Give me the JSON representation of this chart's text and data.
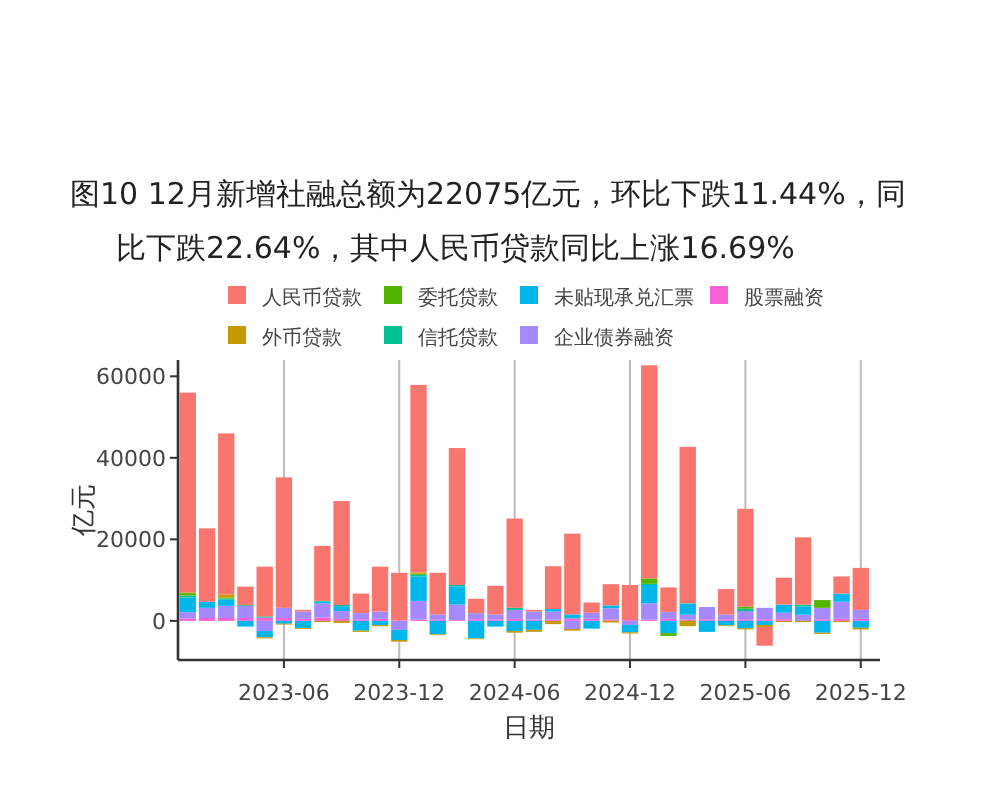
{
  "chart_data": {
    "type": "bar",
    "stacked": true,
    "title": "图10 12月新增社融总额为22075亿元，环比下跌11.44%，同比下跌22.64%，其中人民币贷款同比上涨16.69%",
    "xlabel": "日期",
    "ylabel": "亿元",
    "x": [
      "2023-01",
      "2023-02",
      "2023-03",
      "2023-04",
      "2023-05",
      "2023-06",
      "2023-07",
      "2023-08",
      "2023-09",
      "2023-10",
      "2023-11",
      "2023-12",
      "2024-01",
      "2024-02",
      "2024-03",
      "2024-04",
      "2024-05",
      "2024-06",
      "2024-07",
      "2024-08",
      "2024-09",
      "2024-10",
      "2024-11",
      "2024-12",
      "2025-01",
      "2025-02",
      "2025-03",
      "2025-04",
      "2025-05",
      "2025-06",
      "2025-07",
      "2025-08",
      "2025-09",
      "2025-10",
      "2025-11",
      "2025-12"
    ],
    "xlim": [
      "2022-12-16",
      "2026-01-01"
    ],
    "xticks": [
      "2023-06",
      "2023-12",
      "2024-06",
      "2024-12",
      "2025-06",
      "2025-12"
    ],
    "ylim": [
      -9600,
      64000
    ],
    "yticks": [
      0,
      20000,
      40000,
      60000
    ],
    "grid": "x",
    "legend": "top",
    "series": [
      {
        "name": "股票融资",
        "color": "#fb61d7",
        "values": [
          600,
          700,
          700,
          700,
          800,
          700,
          500,
          800,
          500,
          400,
          500,
          100,
          300,
          400,
          200,
          400,
          400,
          500,
          300,
          300,
          600,
          500,
          300,
          200,
          300,
          500,
          300,
          400,
          400,
          400,
          400,
          400,
          0,
          400,
          500,
          500
        ]
      },
      {
        "name": "企业债券融资",
        "color": "#a58aff",
        "values": [
          1500,
          2500,
          3000,
          3000,
          -2500,
          2500,
          1800,
          3500,
          1900,
          1500,
          1800,
          -2200,
          4600,
          1200,
          3800,
          1500,
          1200,
          2200,
          2000,
          2000,
          -2000,
          1500,
          2800,
          -1000,
          4000,
          1700,
          1200,
          3000,
          1200,
          2000,
          2800,
          1600,
          1500,
          2800,
          4200,
          2200
        ]
      },
      {
        "name": "未贴现承兑汇票",
        "color": "#00b6eb",
        "values": [
          3600,
          1500,
          1500,
          -1400,
          -1500,
          -700,
          -1800,
          400,
          1200,
          -2400,
          -1000,
          -2500,
          6000,
          -3300,
          4500,
          -4300,
          -1400,
          -2500,
          -2200,
          600,
          1000,
          -1900,
          700,
          -1800,
          4500,
          -3000,
          2800,
          -2700,
          -1100,
          -1800,
          -1000,
          2000,
          2000,
          -2900,
          2000,
          -1700
        ]
      },
      {
        "name": "信托贷款",
        "color": "#00c094",
        "values": [
          500,
          0,
          300,
          200,
          300,
          0,
          0,
          200,
          300,
          0,
          0,
          0,
          400,
          0,
          300,
          0,
          0,
          500,
          0,
          0,
          0,
          0,
          0,
          0,
          300,
          0,
          0,
          0,
          0,
          600,
          0,
          0,
          500,
          0,
          0,
          0
        ]
      },
      {
        "name": "委托贷款",
        "color": "#53b400",
        "values": [
          600,
          0,
          200,
          0,
          0,
          0,
          0,
          0,
          0,
          0,
          0,
          0,
          300,
          0,
          0,
          0,
          0,
          0,
          0,
          0,
          0,
          0,
          0,
          0,
          1300,
          -700,
          0,
          0,
          0,
          500,
          0,
          0,
          0,
          1900,
          0,
          0
        ]
      },
      {
        "name": "外币贷款",
        "color": "#c49a00",
        "values": [
          200,
          0,
          800,
          null,
          -300,
          -200,
          -200,
          -300,
          -500,
          -300,
          -300,
          -400,
          300,
          -200,
          0,
          -200,
          null,
          -400,
          -500,
          -800,
          -400,
          null,
          -400,
          -300,
          0,
          0,
          -1300,
          0,
          -200,
          -300,
          -500,
          -300,
          -300,
          -300,
          -300,
          -400
        ]
      },
      {
        "name": "人民币贷款",
        "color": "#f8766d",
        "values": [
          49000,
          18000,
          39500,
          4500,
          12200,
          32000,
          400,
          13500,
          25500,
          4800,
          11000,
          11700,
          46000,
          10200,
          33600,
          3500,
          7000,
          21900,
          400,
          10500,
          19800,
          2500,
          5200,
          8600,
          52300,
          6000,
          38400,
          0,
          6200,
          24000,
          -4600,
          6600,
          16500,
          0,
          4200,
          10300
        ]
      }
    ]
  }
}
